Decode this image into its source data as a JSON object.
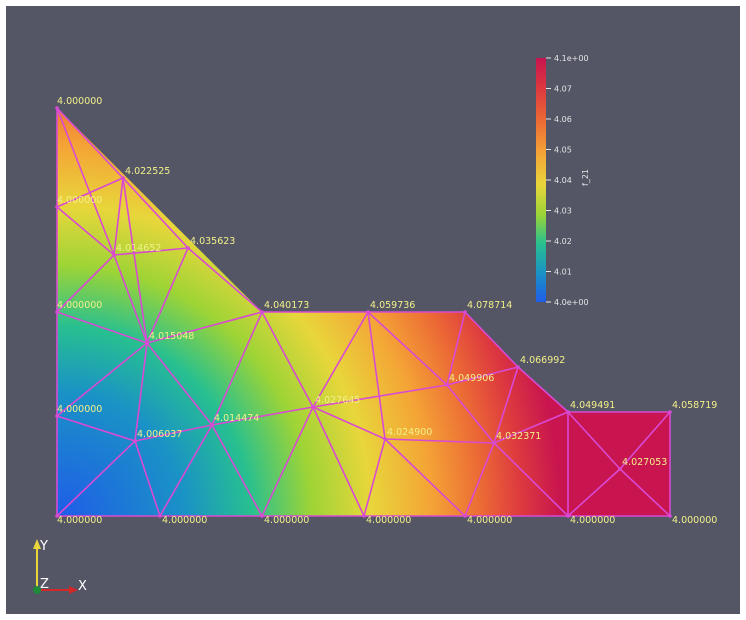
{
  "nodes": [
    {
      "id": 0,
      "label": "4.000000"
    },
    {
      "id": 1,
      "label": "4.022525"
    },
    {
      "id": 2,
      "label": "4.000000"
    },
    {
      "id": 3,
      "label": "4.014652"
    },
    {
      "id": 4,
      "label": "4.035623"
    },
    {
      "id": 5,
      "label": "4.000000"
    },
    {
      "id": 6,
      "label": "4.015048"
    },
    {
      "id": 7,
      "label": "4.040173"
    },
    {
      "id": 8,
      "label": "4.059736"
    },
    {
      "id": 9,
      "label": "4.078714"
    },
    {
      "id": 10,
      "label": "4.066992"
    },
    {
      "id": 11,
      "label": "4.049906"
    },
    {
      "id": 12,
      "label": "4.000000"
    },
    {
      "id": 13,
      "label": "4.006037"
    },
    {
      "id": 14,
      "label": "4.014474"
    },
    {
      "id": 15,
      "label": "4.027645"
    },
    {
      "id": 16,
      "label": "4.024900"
    },
    {
      "id": 17,
      "label": "4.032371"
    },
    {
      "id": 18,
      "label": "4.049491"
    },
    {
      "id": 19,
      "label": "4.058719"
    },
    {
      "id": 20,
      "label": "4.027053"
    },
    {
      "id": 21,
      "label": "4.000000"
    },
    {
      "id": 22,
      "label": "4.000000"
    },
    {
      "id": 23,
      "label": "4.000000"
    },
    {
      "id": 24,
      "label": "4.000000"
    },
    {
      "id": 25,
      "label": "4.000000"
    },
    {
      "id": 26,
      "label": "4.000000"
    },
    {
      "id": 27,
      "label": "4.000000"
    }
  ],
  "colorbar": {
    "title": "f_21",
    "tick_labels": [
      "4.1e+00",
      "4.07",
      "4.06",
      "4.05",
      "4.04",
      "4.03",
      "4.02",
      "4.01",
      "4.0e+00"
    ],
    "colors": [
      "#c8144f",
      "#dd3a3f",
      "#ec6b35",
      "#f4a436",
      "#e8d63b",
      "#9dd436",
      "#28c08f",
      "#1a93c5",
      "#1f5de8"
    ]
  },
  "orientation_axes": {
    "y_label": "Y",
    "z_label": "Z",
    "x_label": "X",
    "colors": {
      "y": "#e8d63b",
      "z": "#1e8a3a",
      "x": "#d42828"
    }
  },
  "mesh_edge_color": "#d94ad4",
  "background_color": "#545666"
}
